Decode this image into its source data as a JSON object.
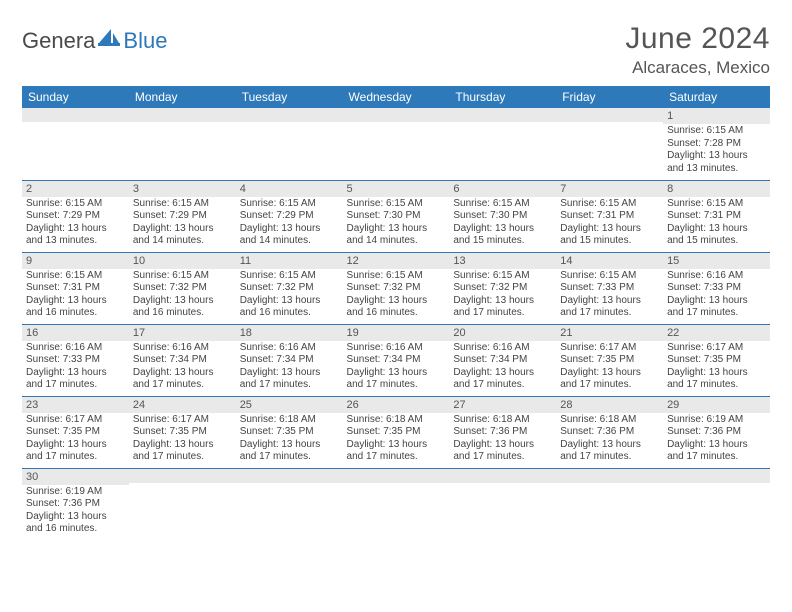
{
  "colors": {
    "header_bg": "#2d79b9",
    "header_text": "#ffffff",
    "daynum_bg": "#e9e9e9",
    "border": "#2d79b9",
    "title_text": "#555555",
    "body_text": "#444444",
    "logo_gray": "#4a4a4a",
    "logo_blue": "#2d79b9",
    "page_bg": "#ffffff"
  },
  "logo": {
    "part1": "Genera",
    "part2": "Blue"
  },
  "title": "June 2024",
  "location": "Alcaraces, Mexico",
  "dayHeaders": [
    "Sunday",
    "Monday",
    "Tuesday",
    "Wednesday",
    "Thursday",
    "Friday",
    "Saturday"
  ],
  "firstDayIndex": 6,
  "daysInMonth": 30,
  "days": {
    "1": {
      "sunrise": "6:15 AM",
      "sunset": "7:28 PM",
      "daylight": "13 hours and 13 minutes."
    },
    "2": {
      "sunrise": "6:15 AM",
      "sunset": "7:29 PM",
      "daylight": "13 hours and 13 minutes."
    },
    "3": {
      "sunrise": "6:15 AM",
      "sunset": "7:29 PM",
      "daylight": "13 hours and 14 minutes."
    },
    "4": {
      "sunrise": "6:15 AM",
      "sunset": "7:29 PM",
      "daylight": "13 hours and 14 minutes."
    },
    "5": {
      "sunrise": "6:15 AM",
      "sunset": "7:30 PM",
      "daylight": "13 hours and 14 minutes."
    },
    "6": {
      "sunrise": "6:15 AM",
      "sunset": "7:30 PM",
      "daylight": "13 hours and 15 minutes."
    },
    "7": {
      "sunrise": "6:15 AM",
      "sunset": "7:31 PM",
      "daylight": "13 hours and 15 minutes."
    },
    "8": {
      "sunrise": "6:15 AM",
      "sunset": "7:31 PM",
      "daylight": "13 hours and 15 minutes."
    },
    "9": {
      "sunrise": "6:15 AM",
      "sunset": "7:31 PM",
      "daylight": "13 hours and 16 minutes."
    },
    "10": {
      "sunrise": "6:15 AM",
      "sunset": "7:32 PM",
      "daylight": "13 hours and 16 minutes."
    },
    "11": {
      "sunrise": "6:15 AM",
      "sunset": "7:32 PM",
      "daylight": "13 hours and 16 minutes."
    },
    "12": {
      "sunrise": "6:15 AM",
      "sunset": "7:32 PM",
      "daylight": "13 hours and 16 minutes."
    },
    "13": {
      "sunrise": "6:15 AM",
      "sunset": "7:32 PM",
      "daylight": "13 hours and 17 minutes."
    },
    "14": {
      "sunrise": "6:15 AM",
      "sunset": "7:33 PM",
      "daylight": "13 hours and 17 minutes."
    },
    "15": {
      "sunrise": "6:16 AM",
      "sunset": "7:33 PM",
      "daylight": "13 hours and 17 minutes."
    },
    "16": {
      "sunrise": "6:16 AM",
      "sunset": "7:33 PM",
      "daylight": "13 hours and 17 minutes."
    },
    "17": {
      "sunrise": "6:16 AM",
      "sunset": "7:34 PM",
      "daylight": "13 hours and 17 minutes."
    },
    "18": {
      "sunrise": "6:16 AM",
      "sunset": "7:34 PM",
      "daylight": "13 hours and 17 minutes."
    },
    "19": {
      "sunrise": "6:16 AM",
      "sunset": "7:34 PM",
      "daylight": "13 hours and 17 minutes."
    },
    "20": {
      "sunrise": "6:16 AM",
      "sunset": "7:34 PM",
      "daylight": "13 hours and 17 minutes."
    },
    "21": {
      "sunrise": "6:17 AM",
      "sunset": "7:35 PM",
      "daylight": "13 hours and 17 minutes."
    },
    "22": {
      "sunrise": "6:17 AM",
      "sunset": "7:35 PM",
      "daylight": "13 hours and 17 minutes."
    },
    "23": {
      "sunrise": "6:17 AM",
      "sunset": "7:35 PM",
      "daylight": "13 hours and 17 minutes."
    },
    "24": {
      "sunrise": "6:17 AM",
      "sunset": "7:35 PM",
      "daylight": "13 hours and 17 minutes."
    },
    "25": {
      "sunrise": "6:18 AM",
      "sunset": "7:35 PM",
      "daylight": "13 hours and 17 minutes."
    },
    "26": {
      "sunrise": "6:18 AM",
      "sunset": "7:35 PM",
      "daylight": "13 hours and 17 minutes."
    },
    "27": {
      "sunrise": "6:18 AM",
      "sunset": "7:36 PM",
      "daylight": "13 hours and 17 minutes."
    },
    "28": {
      "sunrise": "6:18 AM",
      "sunset": "7:36 PM",
      "daylight": "13 hours and 17 minutes."
    },
    "29": {
      "sunrise": "6:19 AM",
      "sunset": "7:36 PM",
      "daylight": "13 hours and 17 minutes."
    },
    "30": {
      "sunrise": "6:19 AM",
      "sunset": "7:36 PM",
      "daylight": "13 hours and 16 minutes."
    }
  },
  "labels": {
    "sunrise": "Sunrise:",
    "sunset": "Sunset:",
    "daylight": "Daylight:"
  }
}
